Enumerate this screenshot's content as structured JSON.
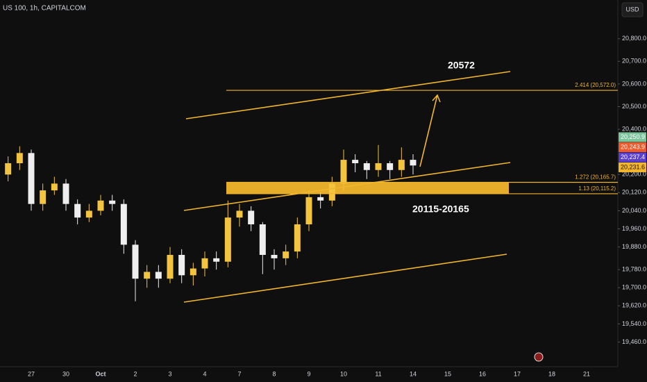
{
  "chart_data": {
    "type": "candlestick",
    "title": "US 100, 1h, CAPITALCOM",
    "currency": "USD",
    "categories": [
      null,
      null,
      "27",
      null,
      null,
      "30",
      null,
      null,
      "Oct",
      null,
      null,
      "2",
      null,
      null,
      "3",
      null,
      null,
      "4",
      null,
      null,
      "7",
      null,
      null,
      "8",
      null,
      null,
      "9",
      null,
      null,
      "10",
      null,
      null,
      "11",
      null,
      null,
      "14",
      null,
      null,
      "15",
      null,
      null,
      "16",
      null,
      null,
      "17",
      null,
      null,
      "18",
      null,
      null,
      "21",
      null,
      null
    ],
    "open": [
      20200,
      20250,
      20295,
      20070,
      20130,
      20160,
      20070,
      20010,
      20040,
      20085,
      20070,
      19890,
      19740,
      19770,
      19740,
      19845,
      19755,
      19785,
      19830,
      19815,
      20010,
      20040,
      19980,
      19845,
      19830,
      19860,
      19980,
      20100,
      20085,
      20160,
      20265,
      20250,
      20220,
      20250,
      20220,
      20265,
      null,
      null,
      null,
      null,
      null,
      null,
      null,
      null,
      null,
      null,
      null,
      null,
      null,
      null,
      null,
      null,
      null
    ],
    "high": [
      20280,
      20325,
      20310,
      20160,
      20190,
      20180,
      20090,
      20070,
      20110,
      20110,
      20090,
      19910,
      19800,
      19800,
      19880,
      19870,
      19810,
      19860,
      19860,
      20085,
      20070,
      20060,
      19990,
      19870,
      19890,
      20010,
      20130,
      20120,
      20190,
      20310,
      20290,
      20260,
      20330,
      20260,
      20320,
      20290,
      null,
      null,
      null,
      null,
      null,
      null,
      null,
      null,
      null,
      null,
      null,
      null,
      null,
      null,
      null,
      null,
      null
    ],
    "low": [
      20170,
      20220,
      20040,
      20040,
      20110,
      20040,
      19980,
      19990,
      20020,
      20040,
      19850,
      19640,
      19700,
      19700,
      19720,
      19720,
      19710,
      19750,
      19780,
      19790,
      19970,
      19950,
      19760,
      19780,
      19800,
      19830,
      19950,
      20050,
      20060,
      20130,
      20210,
      20180,
      20190,
      20180,
      20190,
      20200,
      null,
      null,
      null,
      null,
      null,
      null,
      null,
      null,
      null,
      null,
      null,
      null,
      null,
      null,
      null,
      null,
      null
    ],
    "close": [
      20250,
      20295,
      20070,
      20130,
      20160,
      20070,
      20010,
      20040,
      20085,
      20070,
      19890,
      19740,
      19770,
      19740,
      19845,
      19755,
      19785,
      19830,
      19815,
      20010,
      20040,
      19980,
      19845,
      19830,
      19860,
      19980,
      20100,
      20085,
      20160,
      20265,
      20250,
      20220,
      20250,
      20220,
      20265,
      20240,
      null,
      null,
      null,
      null,
      null,
      null,
      null,
      null,
      null,
      null,
      null,
      null,
      null,
      null,
      null,
      null,
      null
    ],
    "up_color": "#f3c440",
    "down_color": "#eeeeee",
    "ylim": [
      19351,
      20971
    ],
    "yticks": [
      {
        "value": 20800,
        "label": "20,800.0"
      },
      {
        "value": 20700,
        "label": "20,700.0"
      },
      {
        "value": 20600,
        "label": "20,600.0"
      },
      {
        "value": 20500,
        "label": "20,500.0"
      },
      {
        "value": 20400,
        "label": "20,400.0"
      },
      {
        "value": 20200,
        "label": "20,200.0"
      },
      {
        "value": 20120,
        "label": "20,120.0"
      },
      {
        "value": 20040,
        "label": "20,040.0"
      },
      {
        "value": 19960,
        "label": "19,960.0"
      },
      {
        "value": 19880,
        "label": "19,880.0"
      },
      {
        "value": 19780,
        "label": "19,780.0"
      },
      {
        "value": 19700,
        "label": "19,700.0"
      },
      {
        "value": 19620,
        "label": "19,620.0"
      },
      {
        "value": 19540,
        "label": "19,540.0"
      },
      {
        "value": 19460,
        "label": "19,460.0"
      }
    ],
    "levels": [
      {
        "label": "2.414 (20,572.0)",
        "price": 20572.0
      },
      {
        "label": "1.272 (20,165.7)",
        "price": 20165.7
      },
      {
        "label": "1.13 (20,115.2)",
        "price": 20115.2
      }
    ],
    "price_tags": [
      {
        "label": "20,250.9",
        "value": 20250.9,
        "color": "#7cc49c"
      },
      {
        "label": "20,243.9",
        "value": 20243.9,
        "color": "#ef5a2a"
      },
      {
        "label": "20,237.4",
        "value": 20237.4,
        "color": "#5a3fd0"
      },
      {
        "label": "20,231.6",
        "value": 20231.6,
        "color": "#f2b62c"
      }
    ],
    "annotations": [
      "20572",
      "20115-20165"
    ]
  }
}
